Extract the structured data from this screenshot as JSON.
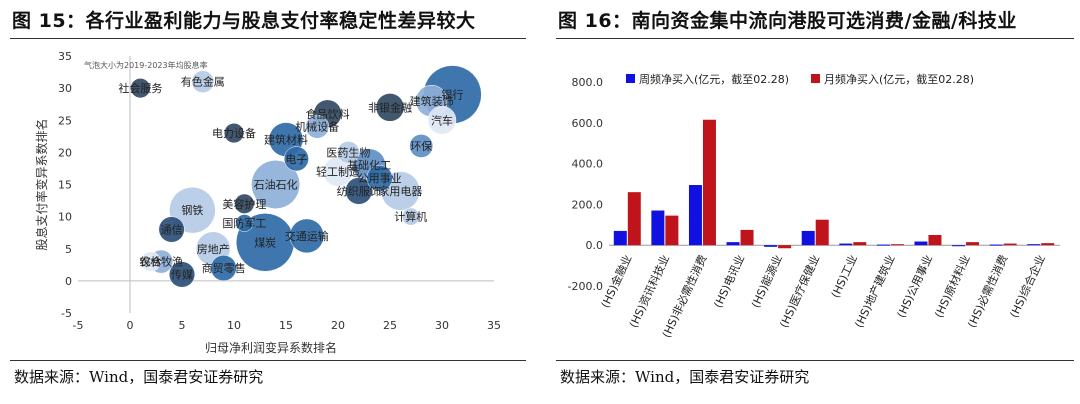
{
  "left": {
    "figure_title": "图 15：各行业盈利能力与股息支付率稳定性差异较大",
    "source": "数据来源：Wind，国泰君安证券研究",
    "chart_data": {
      "type": "scatter",
      "title": "",
      "note": "气泡大小为2019-2023年均股息率",
      "xlabel": "归母净利润变异系数排名",
      "ylabel": "股息支付率变异系数排名",
      "xlim": [
        -5,
        35
      ],
      "ylim": [
        -5,
        35
      ],
      "xticks": [
        -5,
        0,
        5,
        10,
        15,
        20,
        25,
        30,
        35
      ],
      "yticks": [
        -5,
        0,
        5,
        10,
        15,
        20,
        25,
        30,
        35
      ],
      "grid": false,
      "points": [
        {
          "label": "社会服务",
          "x": 1,
          "y": 30,
          "size": 0.8
        },
        {
          "label": "有色金属",
          "x": 7,
          "y": 31,
          "size": 1.0
        },
        {
          "label": "银行",
          "x": 31,
          "y": 29,
          "size": 4.0
        },
        {
          "label": "建筑装饰",
          "x": 29,
          "y": 28,
          "size": 1.8
        },
        {
          "label": "非银金融",
          "x": 25,
          "y": 27,
          "size": 1.5
        },
        {
          "label": "汽车",
          "x": 30,
          "y": 25,
          "size": 1.5
        },
        {
          "label": "食品饮料",
          "x": 19,
          "y": 26,
          "size": 1.5
        },
        {
          "label": "机械设备",
          "x": 18,
          "y": 24,
          "size": 1.1
        },
        {
          "label": "电力设备",
          "x": 10,
          "y": 23,
          "size": 0.8
        },
        {
          "label": "建筑材料",
          "x": 15,
          "y": 22,
          "size": 2.0
        },
        {
          "label": "环保",
          "x": 28,
          "y": 21,
          "size": 1.1
        },
        {
          "label": "医药生物",
          "x": 21,
          "y": 20,
          "size": 1.0
        },
        {
          "label": "电子",
          "x": 16,
          "y": 19,
          "size": 1.2
        },
        {
          "label": "基础化工",
          "x": 23,
          "y": 18,
          "size": 1.9
        },
        {
          "label": "轻工制造",
          "x": 20,
          "y": 17,
          "size": 1.6
        },
        {
          "label": "公用事业",
          "x": 24,
          "y": 16,
          "size": 1.3
        },
        {
          "label": "石油石化",
          "x": 14,
          "y": 15,
          "size": 3.2
        },
        {
          "label": "纺织服饰",
          "x": 22,
          "y": 14,
          "size": 1.4
        },
        {
          "label": "家用电器",
          "x": 26,
          "y": 14,
          "size": 2.4
        },
        {
          "label": "美容护理",
          "x": 11,
          "y": 12,
          "size": 0.8
        },
        {
          "label": "钢铁",
          "x": 6,
          "y": 11,
          "size": 3.0
        },
        {
          "label": "计算机",
          "x": 27,
          "y": 10,
          "size": 0.6
        },
        {
          "label": "国防军工",
          "x": 11,
          "y": 9,
          "size": 0.6
        },
        {
          "label": "通信",
          "x": 4,
          "y": 8,
          "size": 1.3
        },
        {
          "label": "交通运输",
          "x": 17,
          "y": 7,
          "size": 2.0
        },
        {
          "label": "煤炭",
          "x": 13,
          "y": 6,
          "size": 4.0
        },
        {
          "label": "房地产",
          "x": 8,
          "y": 5,
          "size": 2.0
        },
        {
          "label": "综合",
          "x": 2,
          "y": 3,
          "size": 0.8
        },
        {
          "label": "农林牧渔",
          "x": 3,
          "y": 3,
          "size": 1.1
        },
        {
          "label": "商贸零售",
          "x": 9,
          "y": 2,
          "size": 1.3
        },
        {
          "label": "传媒",
          "x": 5,
          "y": 1,
          "size": 1.3
        }
      ]
    }
  },
  "right": {
    "figure_title": "图 16：南向资金集中流向港股可选消费/金融/科技业",
    "source": "数据来源：Wind，国泰君安证券研究",
    "chart_data": {
      "type": "bar",
      "title": "",
      "categories": [
        "(HS)金融业",
        "(HS)资讯科技业",
        "(HS)非必需性消费",
        "(HS)电讯业",
        "(HS)能源业",
        "(HS)医疗保健业",
        "(HS)工业",
        "(HS)地产建筑业",
        "(HS)公用事业",
        "(HS)原材料业",
        "(HS)必需性消费",
        "(HS)综合企业"
      ],
      "series": [
        {
          "name": "周频净买入(亿元，截至02.28)",
          "color": "#1010e0",
          "values": [
            70,
            170,
            295,
            15,
            -8,
            70,
            8,
            3,
            18,
            -5,
            3,
            5
          ]
        },
        {
          "name": "月频净买入(亿元，截至02.28)",
          "color": "#c0141c",
          "values": [
            260,
            145,
            615,
            75,
            -15,
            125,
            15,
            5,
            50,
            15,
            8,
            10
          ]
        }
      ],
      "xlabel": "",
      "ylabel": "",
      "ylim": [
        -200,
        800
      ],
      "yticks": [
        -200,
        0,
        200,
        400,
        600,
        800
      ],
      "ytick_labels": [
        "-200.0",
        "0.0",
        "200.0",
        "400.0",
        "600.0",
        "800.0"
      ],
      "legend": "top"
    }
  }
}
